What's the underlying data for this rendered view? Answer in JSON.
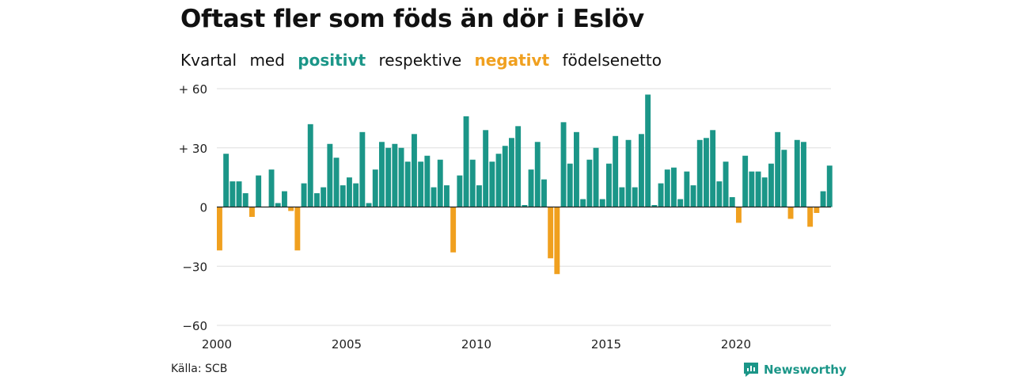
{
  "title": "Oftast fler som föds än dör i Eslöv",
  "subtitle": {
    "part1": "Kvartal",
    "part2": "med",
    "positive_word": "positivt",
    "part3": "respektive",
    "negative_word": "negativt",
    "part4": "födelsenetto"
  },
  "source": "Källa: SCB",
  "brand": "Newsworthy",
  "colors": {
    "positive": "#1b9688",
    "negative": "#f0a01f",
    "grid": "#dddddd"
  },
  "chart_data": {
    "type": "bar",
    "x_start": "2000 Q1",
    "x_ticks": [
      "2000",
      "2005",
      "2010",
      "2015",
      "2020"
    ],
    "y_ticks": [
      "+ 60",
      "+ 30",
      "0",
      "−30",
      "−60"
    ],
    "ylim": [
      -60,
      60
    ],
    "grid": true,
    "values": [
      -22,
      27,
      13,
      13,
      7,
      -5,
      16,
      0,
      19,
      2,
      8,
      -2,
      -22,
      12,
      42,
      7,
      10,
      32,
      25,
      11,
      15,
      12,
      38,
      2,
      19,
      33,
      30,
      32,
      30,
      23,
      37,
      23,
      26,
      10,
      24,
      11,
      -23,
      16,
      46,
      24,
      11,
      39,
      23,
      27,
      31,
      35,
      41,
      1,
      19,
      33,
      14,
      -26,
      -34,
      43,
      22,
      38,
      4,
      24,
      30,
      4,
      22,
      36,
      10,
      34,
      10,
      37,
      57,
      1,
      12,
      19,
      20,
      4,
      18,
      11,
      34,
      35,
      39,
      13,
      23,
      5,
      -8,
      26,
      18,
      18,
      15,
      22,
      38,
      29,
      -6,
      34,
      33,
      -10,
      -3,
      8,
      21
    ]
  }
}
